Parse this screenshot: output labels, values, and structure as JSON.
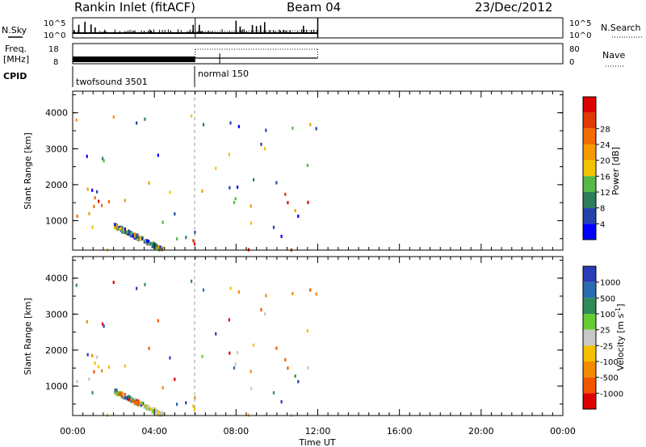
{
  "header": {
    "station": "Rankin Inlet (fitACF)",
    "beam": "Beam 04",
    "date": "23/Dec/2012"
  },
  "colors": {
    "power": [
      "#0000ff",
      "#2244aa",
      "#2e7d5b",
      "#55b848",
      "#f2c400",
      "#f59a00",
      "#f26a00",
      "#e03a00",
      "#dd0000"
    ],
    "velocity": [
      "#2a3cb8",
      "#2b6cb0",
      "#2e8b57",
      "#66cc33",
      "#c8c8c8",
      "#f5c000",
      "#f28a00",
      "#f25400",
      "#dd0000"
    ]
  },
  "chart_data": [
    {
      "id": "noise",
      "type": "line",
      "left_label": "N.Sky",
      "right_label": "N.Search",
      "left_ticks": [
        "10^5",
        "10^0"
      ],
      "right_ticks": [
        "10^5",
        "10^0"
      ],
      "x_range_hours": [
        0,
        24
      ],
      "data_end_hours": 12,
      "sky_spikes_hours": [
        0.3,
        0.6,
        0.9,
        1.1,
        5.9,
        6.2,
        8.0,
        8.2,
        8.8,
        9.0,
        9.2,
        9.4,
        11.3
      ]
    },
    {
      "id": "freq_nave",
      "type": "line",
      "left_label": "Freq.\n[MHz]",
      "right_label": "Nave",
      "left_ticks": [
        "18",
        "8"
      ],
      "right_ticks": [
        "80",
        "0"
      ],
      "segments": [
        {
          "from_hours": 0,
          "to_hours": 6,
          "freq_style": "thick",
          "nave_style": "none"
        },
        {
          "from_hours": 6,
          "to_hours": 12,
          "freq_style": "thin",
          "nave_style": "dotted"
        }
      ]
    },
    {
      "id": "cpid",
      "type": "table",
      "label": "CPID",
      "entries": [
        {
          "start_hours": 0,
          "text": "twofsound 3501"
        },
        {
          "start_hours": 6,
          "text": "normal 150"
        }
      ]
    },
    {
      "id": "power",
      "type": "heatmap",
      "ylabel": "Slant Range [km]",
      "yticks": [
        "1000",
        "2000",
        "3000",
        "4000"
      ],
      "colorbar_title": "Power [dB]",
      "colorbar_ticks": [
        "4",
        "8",
        "12",
        "16",
        "20",
        "24",
        "28"
      ],
      "ylim_km": [
        180,
        4600
      ],
      "vline_hours": 6
    },
    {
      "id": "velocity",
      "type": "heatmap",
      "ylabel": "Slant Range [km]",
      "yticks": [
        "1000",
        "2000",
        "3000",
        "4000"
      ],
      "colorbar_title": "Velocity [m s^-1]",
      "colorbar_ticks": [
        "1000",
        "500",
        "100",
        "25",
        "-25",
        "-100",
        "-500",
        "-1000"
      ],
      "ylim_km": [
        180,
        4600
      ],
      "vline_hours": 6
    }
  ],
  "time_axis": {
    "ticks": [
      "00:00",
      "04:00",
      "08:00",
      "12:00",
      "16:00",
      "20:00",
      "00:00"
    ],
    "label": "Time UT"
  }
}
